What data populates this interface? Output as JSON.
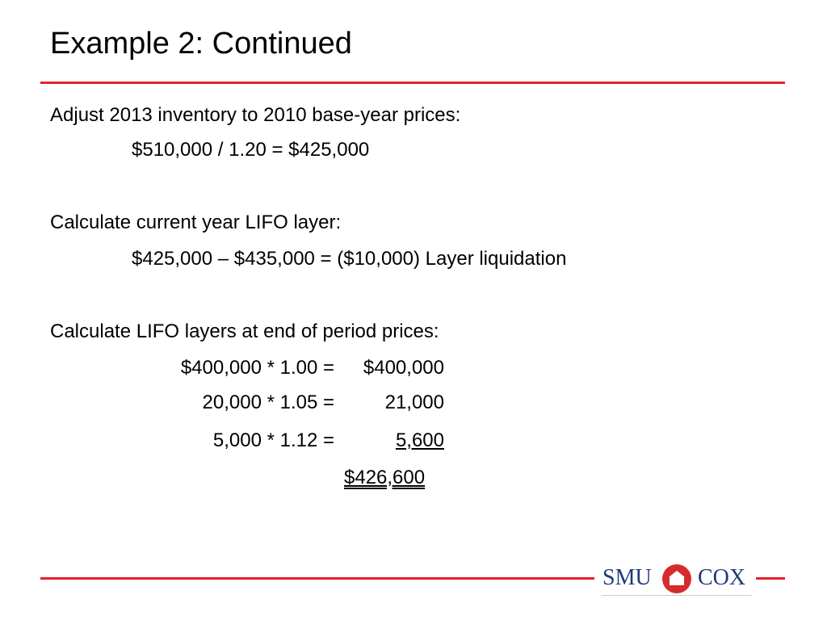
{
  "title": "Example 2: Continued",
  "sections": [
    {
      "heading": "Adjust 2013 inventory to 2010 base-year prices:",
      "lines": [
        "$510,000 / 1.20 = $425,000"
      ]
    },
    {
      "heading": "Calculate current year LIFO layer:",
      "lines": [
        "$425,000 – $435,000 = ($10,000) Layer liquidation"
      ]
    },
    {
      "heading": "Calculate LIFO layers at end of period prices:",
      "rows": [
        {
          "expr": "$400,000 * 1.00 =",
          "amount": "$400,000"
        },
        {
          "expr": "20,000 * 1.05 =",
          "amount": "21,000"
        },
        {
          "expr": "5,000 * 1.12 =",
          "amount": "5,600"
        }
      ],
      "total": "$426,600"
    }
  ],
  "logo": {
    "left": "SMU",
    "right": "COX"
  }
}
